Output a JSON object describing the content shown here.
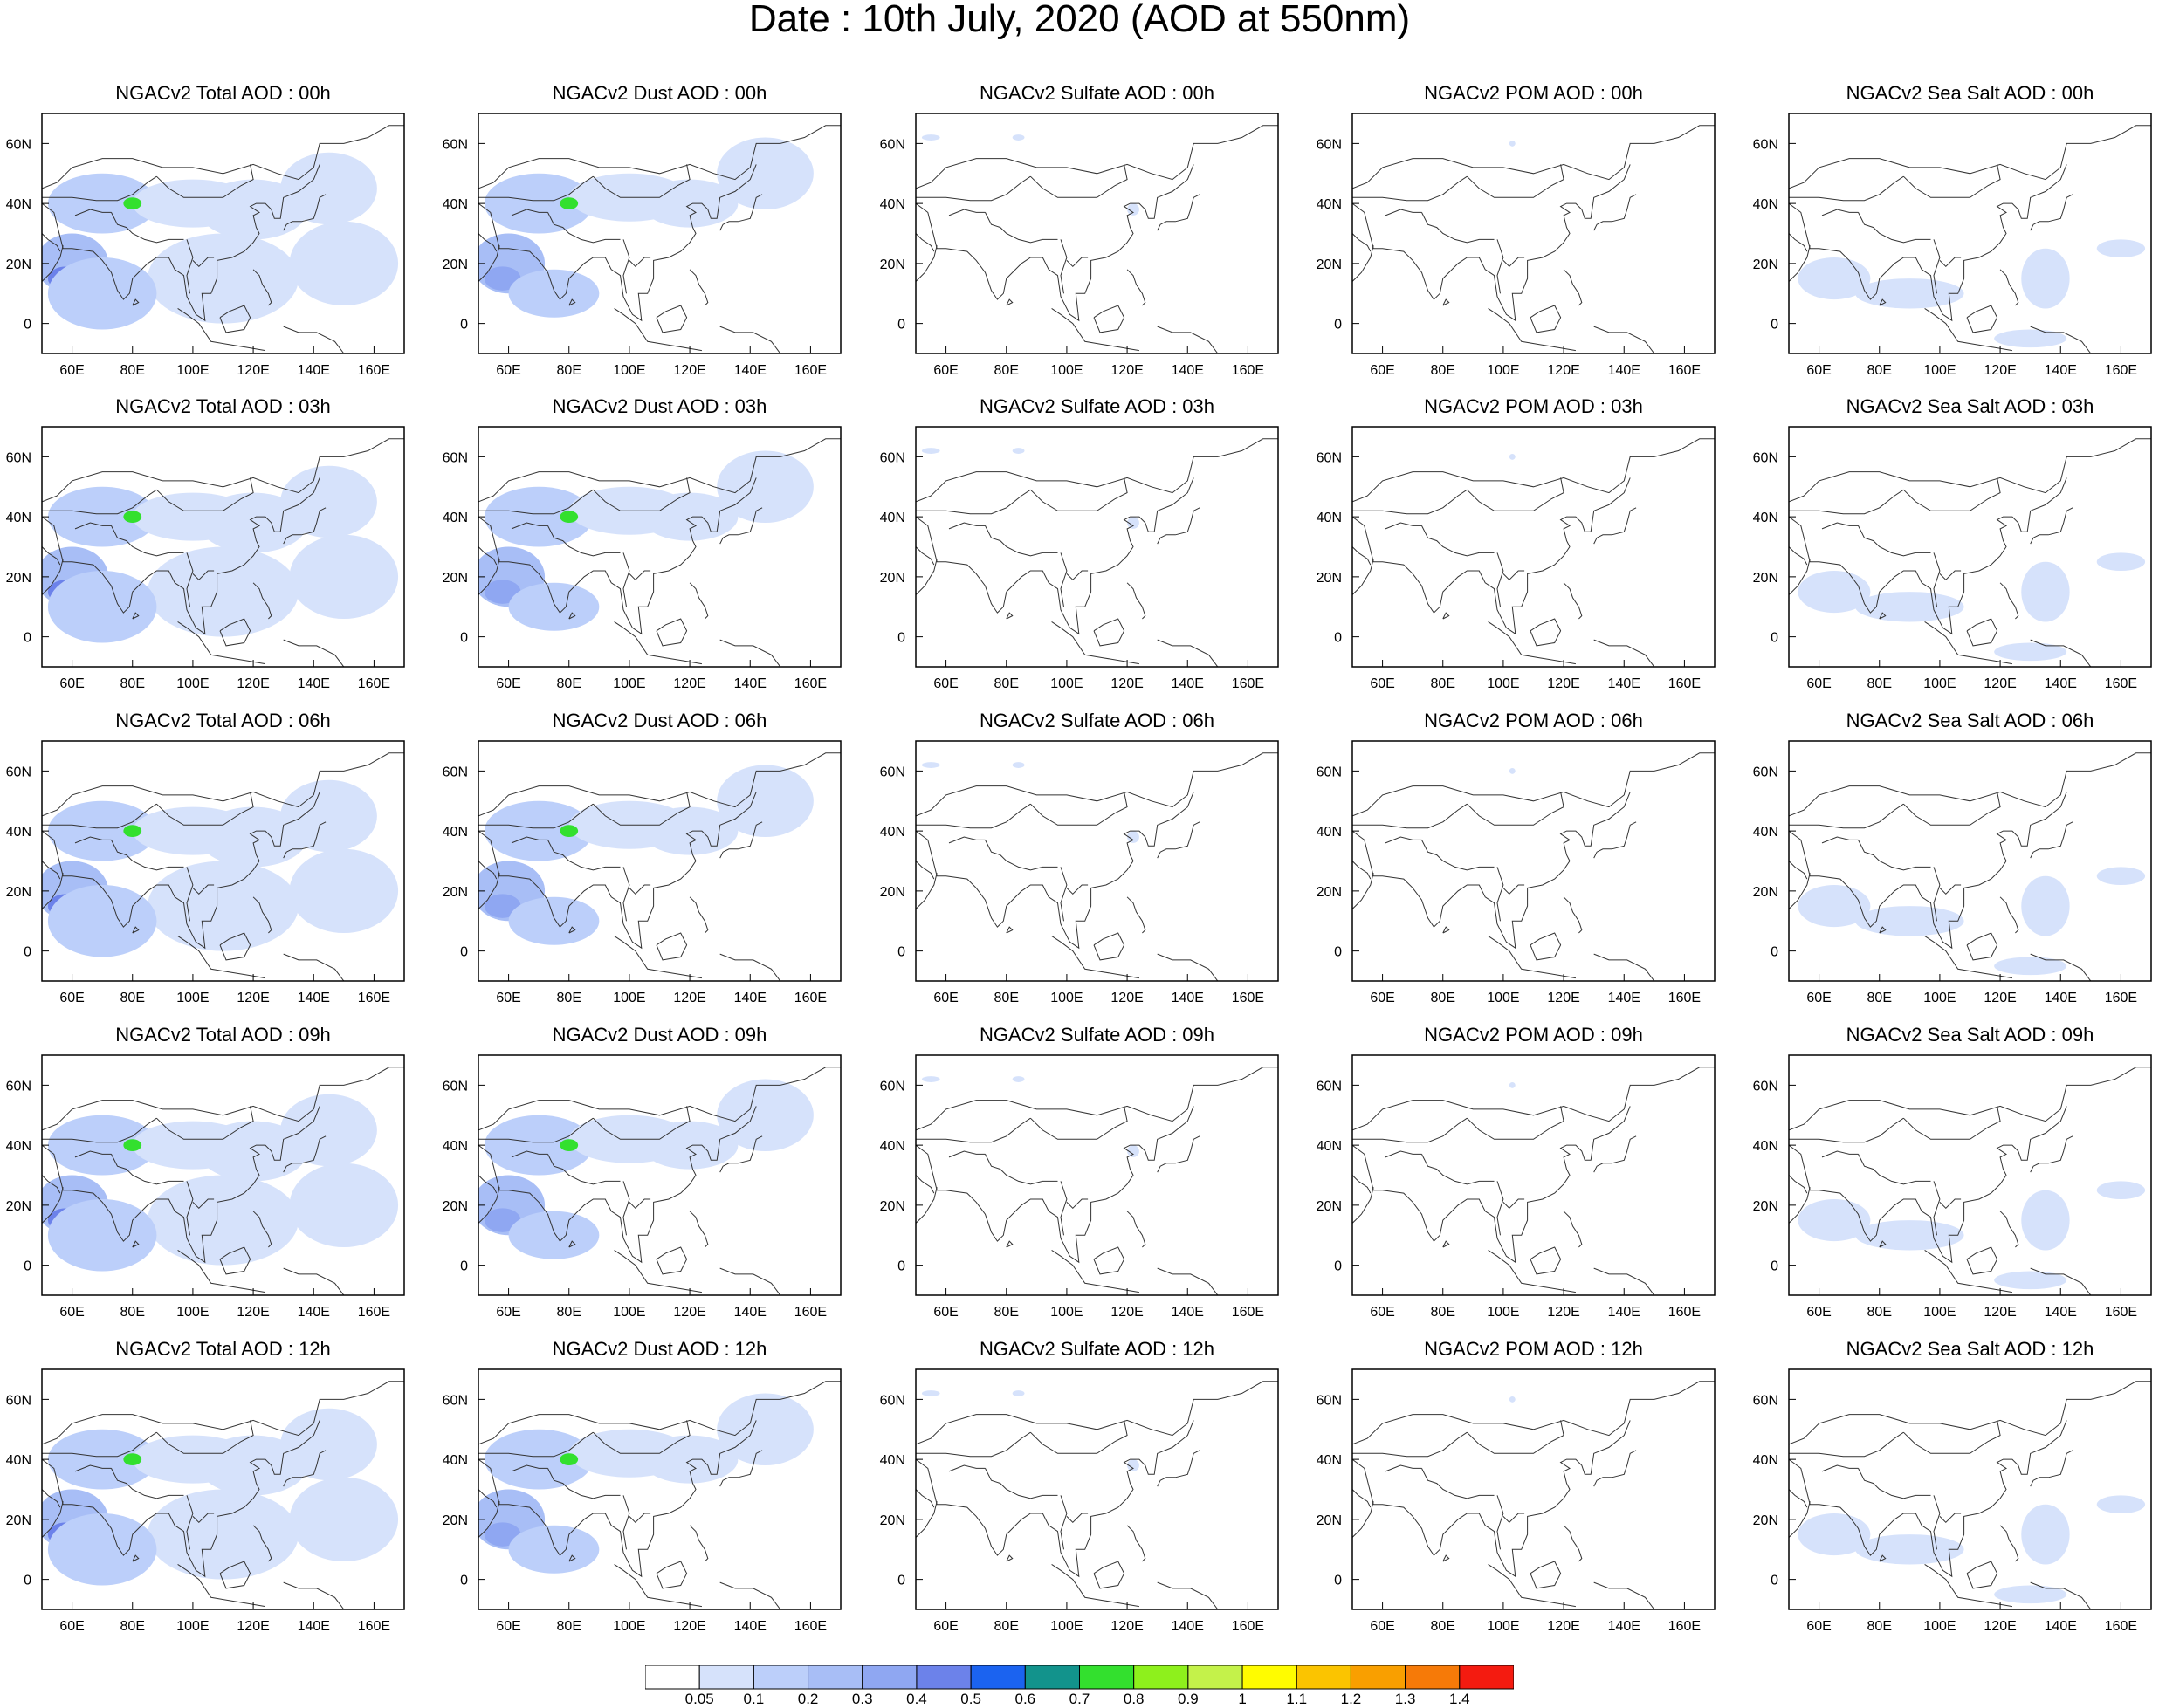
{
  "figure": {
    "title": "Date : 10th July, 2020 (AOD at 550nm)"
  },
  "panels": [
    {
      "title": "NGACv2 Total AOD : 00h",
      "species": "total"
    },
    {
      "title": "NGACv2 Dust AOD : 00h",
      "species": "dust"
    },
    {
      "title": "NGACv2 Sulfate AOD : 00h",
      "species": "sulfate"
    },
    {
      "title": "NGACv2 POM AOD : 00h",
      "species": "pom"
    },
    {
      "title": "NGACv2 Sea Salt AOD : 00h",
      "species": "seasalt"
    },
    {
      "title": "NGACv2 Total AOD : 03h",
      "species": "total"
    },
    {
      "title": "NGACv2 Dust AOD : 03h",
      "species": "dust"
    },
    {
      "title": "NGACv2 Sulfate AOD : 03h",
      "species": "sulfate"
    },
    {
      "title": "NGACv2 POM AOD : 03h",
      "species": "pom"
    },
    {
      "title": "NGACv2 Sea Salt AOD : 03h",
      "species": "seasalt"
    },
    {
      "title": "NGACv2 Total AOD : 06h",
      "species": "total"
    },
    {
      "title": "NGACv2 Dust AOD : 06h",
      "species": "dust"
    },
    {
      "title": "NGACv2 Sulfate AOD : 06h",
      "species": "sulfate"
    },
    {
      "title": "NGACv2 POM AOD : 06h",
      "species": "pom"
    },
    {
      "title": "NGACv2 Sea Salt AOD : 06h",
      "species": "seasalt"
    },
    {
      "title": "NGACv2 Total AOD : 09h",
      "species": "total"
    },
    {
      "title": "NGACv2 Dust AOD : 09h",
      "species": "dust"
    },
    {
      "title": "NGACv2 Sulfate AOD : 09h",
      "species": "sulfate"
    },
    {
      "title": "NGACv2 POM AOD : 09h",
      "species": "pom"
    },
    {
      "title": "NGACv2 Sea Salt  AOD : 09h",
      "species": "seasalt"
    },
    {
      "title": "NGACv2 Total AOD  : 12h",
      "species": "total"
    },
    {
      "title": "NGACv2 Dust AOD : 12h",
      "species": "dust"
    },
    {
      "title": "NGACv2 Sulfate AOD : 12h",
      "species": "sulfate"
    },
    {
      "title": "NGACv2 POM  AOD : 12h",
      "species": "pom"
    },
    {
      "title": "NGACv2 Sea Salt  AOD : 12h",
      "species": "seasalt"
    }
  ],
  "map": {
    "lon_range": [
      50,
      170
    ],
    "lat_range": [
      -10,
      70
    ],
    "x_ticks": [
      "60E",
      "80E",
      "100E",
      "120E",
      "140E",
      "160E"
    ],
    "y_ticks": [
      "60N",
      "40N",
      "20N",
      "0"
    ]
  },
  "colorbar": {
    "labels": [
      "0.05",
      "0.1",
      "0.2",
      "0.3",
      "0.4",
      "0.5",
      "0.6",
      "0.7",
      "0.8",
      "0.9",
      "1",
      "1.1",
      "1.2",
      "1.3",
      "1.4"
    ],
    "colors": [
      "#ffffff",
      "#d6e2fb",
      "#bccffa",
      "#a8bef6",
      "#8fa7f2",
      "#6c82ea",
      "#1b63f0",
      "#12938c",
      "#33e02e",
      "#8ef01c",
      "#c4f24a",
      "#fffc00",
      "#fbc400",
      "#f99f00",
      "#f67a08",
      "#f41b10"
    ]
  }
}
